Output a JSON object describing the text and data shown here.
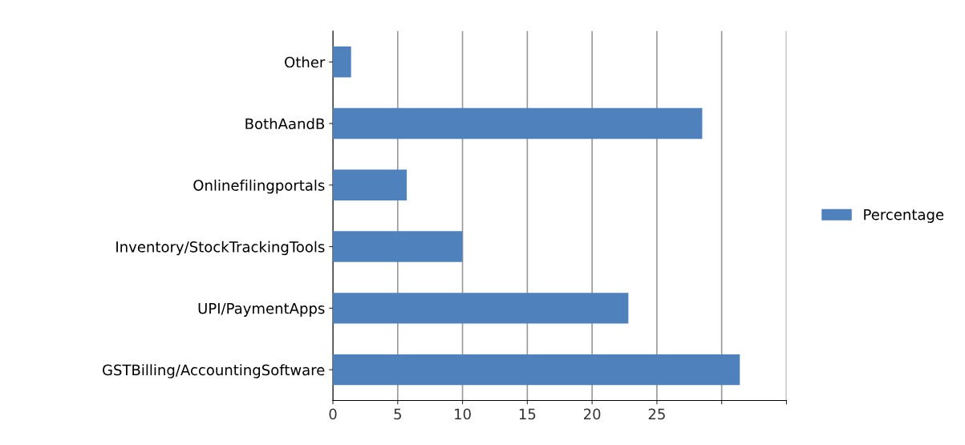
{
  "chart_data": {
    "type": "bar",
    "orientation": "horizontal",
    "categories": [
      "Other",
      "BothAandB",
      "Onlinefilingportals",
      "Inventory/StockTrackingTools",
      "UPI/PaymentApps",
      "GSTBilling/AccountingSoftware"
    ],
    "series": [
      {
        "name": "Percentage",
        "color": "#4f81bd",
        "values": [
          1.4,
          28.5,
          5.7,
          10,
          22.8,
          31.4
        ]
      }
    ],
    "xlim": [
      0,
      35
    ],
    "xticks": [
      0,
      5,
      10,
      15,
      20,
      25,
      {
        "value": 30,
        "label": null
      },
      {
        "value": 35,
        "label": null
      }
    ],
    "grid": "x",
    "legend": "right"
  }
}
